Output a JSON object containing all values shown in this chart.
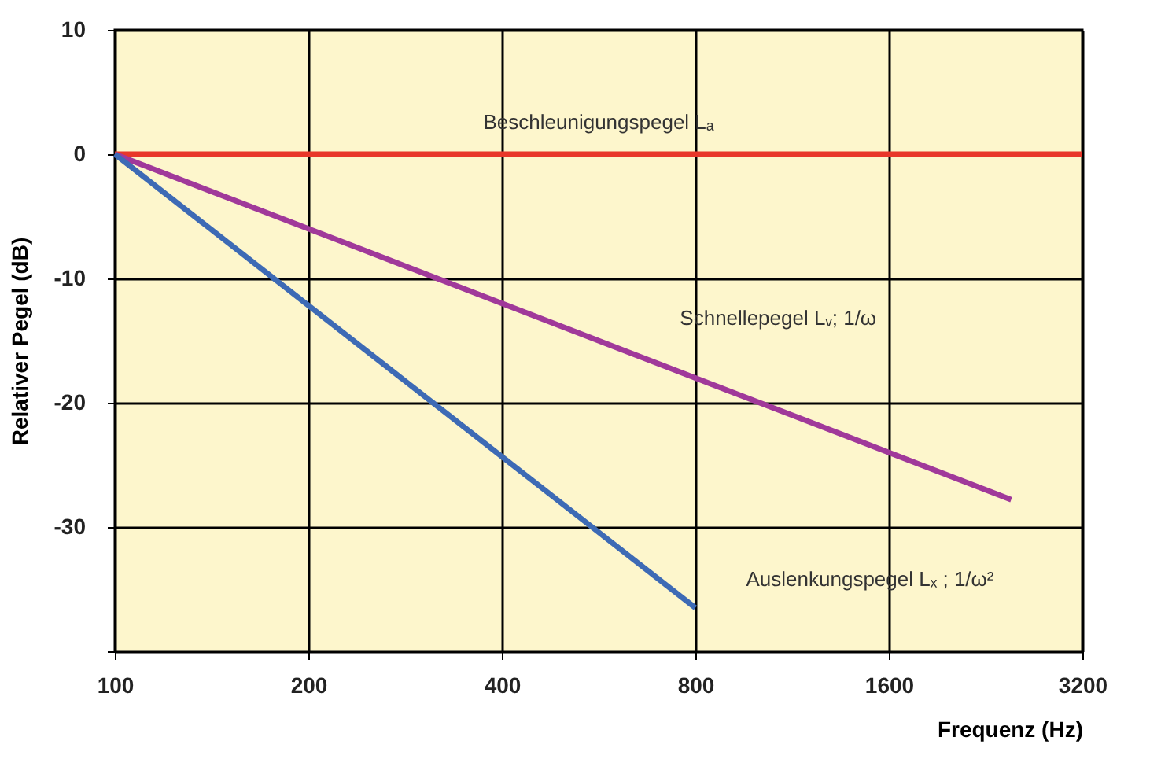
{
  "chart_data": {
    "type": "line",
    "xlabel": "Frequenz (Hz)",
    "ylabel": "Relativer Pegel (dB)",
    "log": "x",
    "grid": true,
    "legend": false,
    "marker": "none",
    "line_style": "solid",
    "xlim": [
      100,
      3200
    ],
    "xticks": [
      100,
      200,
      400,
      800,
      1600,
      3200
    ],
    "ylim": [
      -40,
      10
    ],
    "yticks": [
      10,
      0,
      -10,
      -20,
      -30,
      {
        "value": -40,
        "label": null
      }
    ],
    "series": [
      {
        "name": "Beschleunigungspegel Lₐ",
        "color": "#e8372a",
        "x": [
          100,
          3200
        ],
        "values": [
          0,
          0
        ]
      },
      {
        "name": "Schnellepegel Lᵥ;  1/ω",
        "color": "#a0399a",
        "x": [
          100,
          2480
        ],
        "values": [
          0,
          -27.8
        ]
      },
      {
        "name": "Auslenkungspegel Lₓ ; 1/ω²",
        "color": "#3d6ab5",
        "x": [
          100,
          800
        ],
        "values": [
          0,
          -36.5
        ]
      }
    ]
  }
}
